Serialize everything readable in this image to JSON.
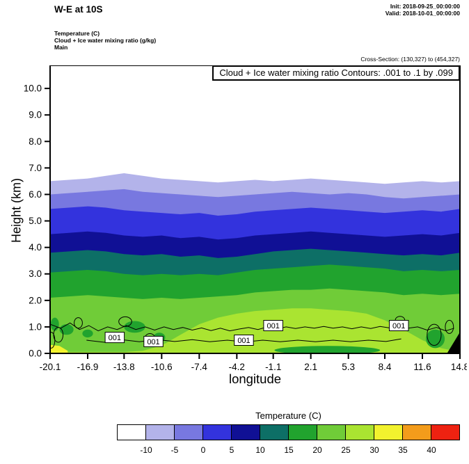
{
  "header": {
    "title": "W-E at 10S",
    "init": "Init: 2018-09-25_00:00:00",
    "valid": "Valid: 2018-10-01_00:00:00",
    "field_lines": [
      "Temperature (C)",
      "Cloud + Ice water mixing ratio (g/kg)",
      "Main"
    ],
    "cross_section": "Cross-Section: (130,327) to (454,327)"
  },
  "plot": {
    "annotation": "Cloud + Ice water mixing ratio Contours: .001 to .1 by .099",
    "xlabel": "longitude",
    "ylabel": "Height (km)"
  },
  "colorbar": {
    "title": "Temperature (C)",
    "colors": [
      "#ffffff",
      "#b3b3ea",
      "#7878e0",
      "#3333dd",
      "#101095",
      "#0d6f66",
      "#21a32e",
      "#70cc38",
      "#aae431",
      "#f2f22e",
      "#f39c1b",
      "#ee2211"
    ],
    "labels": [
      "-10",
      "-5",
      "0",
      "5",
      "10",
      "15",
      "20",
      "25",
      "30",
      "35",
      "40"
    ]
  },
  "chart_data": {
    "type": "area",
    "title": "Cloud + Ice water mixing ratio Contours: .001 to .1 by .099",
    "xlabel": "longitude",
    "ylabel": "Height (km)",
    "xlim": [
      -20.1,
      14.8
    ],
    "ylim": [
      0,
      10.87
    ],
    "x_ticks": [
      {
        "v": -20.1,
        "label": "-20.1"
      },
      {
        "v": -16.9,
        "label": "-16.9"
      },
      {
        "v": -13.8,
        "label": "-13.8"
      },
      {
        "v": -10.6,
        "label": "-10.6"
      },
      {
        "v": -7.4,
        "label": "-7.4"
      },
      {
        "v": -4.2,
        "label": "-4.2"
      },
      {
        "v": -1.1,
        "label": "-1.1"
      },
      {
        "v": 2.1,
        "label": "2.1"
      },
      {
        "v": 5.3,
        "label": "5.3"
      },
      {
        "v": 8.4,
        "label": "8.4"
      },
      {
        "v": 11.6,
        "label": "11.6"
      },
      {
        "v": 14.8,
        "label": "14.8"
      }
    ],
    "y_ticks": [
      {
        "v": 0,
        "label": "0.0"
      },
      {
        "v": 1,
        "label": "1.0"
      },
      {
        "v": 2,
        "label": "2.0"
      },
      {
        "v": 3,
        "label": "3.0"
      },
      {
        "v": 4,
        "label": "4.0"
      },
      {
        "v": 5,
        "label": "5.0"
      },
      {
        "v": 6,
        "label": "6.0"
      },
      {
        "v": 7,
        "label": "7.0"
      },
      {
        "v": 8,
        "label": "8.0"
      },
      {
        "v": 9,
        "label": "9.0"
      },
      {
        "v": 10,
        "label": "10.0"
      }
    ],
    "x": [
      -20.1,
      -18.5,
      -16.9,
      -15.35,
      -13.8,
      -12.2,
      -10.6,
      -9.0,
      -7.4,
      -5.8,
      -4.2,
      -2.65,
      -1.1,
      0.5,
      2.1,
      3.7,
      5.3,
      6.85,
      8.4,
      10.0,
      11.6,
      13.2,
      14.8
    ],
    "isotherm_series": [
      {
        "level": -10,
        "color": "#b3b3ea",
        "heights": [
          6.5,
          6.55,
          6.6,
          6.7,
          6.8,
          6.7,
          6.6,
          6.55,
          6.5,
          6.45,
          6.5,
          6.55,
          6.5,
          6.55,
          6.6,
          6.55,
          6.5,
          6.45,
          6.4,
          6.45,
          6.5,
          6.45,
          6.5
        ]
      },
      {
        "level": -5,
        "color": "#7878e0",
        "heights": [
          6.0,
          6.05,
          6.1,
          6.15,
          6.2,
          6.1,
          6.05,
          6.0,
          5.95,
          5.9,
          5.95,
          6.0,
          6.05,
          6.1,
          6.05,
          6.0,
          6.05,
          6.0,
          5.9,
          5.85,
          5.9,
          5.95,
          6.0
        ]
      },
      {
        "level": 0,
        "color": "#3333dd",
        "heights": [
          5.45,
          5.5,
          5.55,
          5.5,
          5.4,
          5.35,
          5.3,
          5.25,
          5.3,
          5.2,
          5.25,
          5.35,
          5.4,
          5.45,
          5.5,
          5.45,
          5.4,
          5.35,
          5.3,
          5.35,
          5.4,
          5.35,
          5.45
        ]
      },
      {
        "level": 5,
        "color": "#101095",
        "heights": [
          4.5,
          4.55,
          4.6,
          4.55,
          4.45,
          4.4,
          4.45,
          4.35,
          4.4,
          4.3,
          4.35,
          4.45,
          4.5,
          4.55,
          4.6,
          4.55,
          4.5,
          4.45,
          4.4,
          4.45,
          4.5,
          4.45,
          4.55
        ]
      },
      {
        "level": 10,
        "color": "#0d6f66",
        "heights": [
          3.8,
          3.85,
          3.9,
          3.85,
          3.75,
          3.7,
          3.75,
          3.65,
          3.7,
          3.6,
          3.65,
          3.75,
          3.85,
          3.9,
          3.95,
          3.9,
          3.85,
          3.8,
          3.75,
          3.7,
          3.75,
          3.7,
          3.8
        ]
      },
      {
        "level": 15,
        "color": "#21a32e",
        "heights": [
          3.05,
          3.1,
          3.15,
          3.1,
          3.0,
          2.95,
          3.0,
          2.95,
          3.0,
          2.95,
          3.05,
          3.15,
          3.2,
          3.25,
          3.3,
          3.35,
          3.3,
          3.25,
          3.2,
          3.1,
          3.15,
          3.1,
          3.15
        ]
      },
      {
        "level": 20,
        "color": "#70cc38",
        "heights": [
          2.1,
          2.15,
          2.2,
          2.15,
          2.1,
          2.05,
          2.1,
          2.05,
          2.1,
          2.15,
          2.2,
          2.3,
          2.35,
          2.4,
          2.4,
          2.45,
          2.4,
          2.35,
          2.3,
          2.2,
          2.25,
          2.2,
          2.25
        ]
      },
      {
        "level": 25,
        "color": "#aae431",
        "heights": [
          0.05,
          0.05,
          0.05,
          0.05,
          0.05,
          0.1,
          0.3,
          0.7,
          1.1,
          1.35,
          1.5,
          1.6,
          1.65,
          1.7,
          1.7,
          1.65,
          1.6,
          1.5,
          1.25,
          0.9,
          0.5,
          0.2,
          0.05
        ]
      }
    ],
    "pockets": [
      {
        "x": -19.7,
        "h": 1.1,
        "rx": 0.35,
        "ry": 0.25,
        "color": "#21a32e"
      },
      {
        "x": -18.7,
        "h": 0.9,
        "rx": 0.6,
        "ry": 0.2,
        "color": "#21a32e"
      },
      {
        "x": -16.9,
        "h": 0.75,
        "rx": 0.45,
        "ry": 0.15,
        "color": "#21a32e"
      },
      {
        "x": -12.9,
        "h": 1.0,
        "rx": 0.9,
        "ry": 0.22,
        "color": "#21a32e"
      },
      {
        "x": -10.8,
        "h": 0.6,
        "rx": 0.5,
        "ry": 0.18,
        "color": "#21a32e"
      },
      {
        "x": 3.5,
        "h": 0.12,
        "rx": 4.5,
        "ry": 0.16,
        "color": "#21a32e"
      },
      {
        "x": 12.7,
        "h": 0.55,
        "rx": 0.8,
        "ry": 0.35,
        "color": "#21a32e"
      }
    ],
    "cloud_contour_lines": [
      [
        [
          -20.1,
          1.1
        ],
        [
          -19.2,
          0.95
        ],
        [
          -18.4,
          1.15
        ],
        [
          -17.6,
          0.9
        ],
        [
          -16.8,
          1.05
        ],
        [
          -16,
          0.85
        ],
        [
          -15.2,
          1
        ],
        [
          -14.4,
          0.9
        ],
        [
          -13.6,
          1.05
        ],
        [
          -12.8,
          0.9
        ],
        [
          -12,
          1
        ],
        [
          -11.2,
          0.88
        ],
        [
          -10.4,
          1
        ],
        [
          -9.6,
          0.9
        ],
        [
          -8.8,
          0.98
        ],
        [
          -8,
          0.88
        ],
        [
          -7.2,
          0.96
        ],
        [
          -6.4,
          0.86
        ],
        [
          -5.6,
          0.95
        ],
        [
          -4.8,
          0.85
        ],
        [
          -4,
          0.92
        ],
        [
          -3.2,
          0.98
        ],
        [
          -2.4,
          0.9
        ],
        [
          -1.6,
          1
        ],
        [
          -0.8,
          0.92
        ],
        [
          0,
          1
        ],
        [
          0.8,
          0.94
        ],
        [
          1.6,
          1
        ],
        [
          2.4,
          0.95
        ],
        [
          3.2,
          1.02
        ],
        [
          4,
          0.95
        ],
        [
          4.8,
          1
        ],
        [
          5.6,
          0.93
        ],
        [
          6.4,
          1
        ],
        [
          7.2,
          0.94
        ],
        [
          8,
          1.02
        ],
        [
          8.8,
          0.96
        ],
        [
          9.6,
          1.05
        ],
        [
          10.4,
          0.95
        ],
        [
          11.2,
          1
        ],
        [
          12,
          0.88
        ],
        [
          12.8,
          0.98
        ],
        [
          13.6,
          0.85
        ],
        [
          14.3,
          0.95
        ]
      ],
      [
        [
          -17,
          0.5
        ],
        [
          -15.5,
          0.42
        ],
        [
          -14,
          0.52
        ],
        [
          -12.5,
          0.44
        ],
        [
          -11,
          0.52
        ],
        [
          -9.5,
          0.45
        ],
        [
          -8,
          0.52
        ],
        [
          -6.5,
          0.44
        ],
        [
          -5,
          0.5
        ],
        [
          -3.5,
          0.43
        ],
        [
          -2,
          0.5
        ],
        [
          -0.5,
          0.44
        ],
        [
          1,
          0.5
        ],
        [
          2.5,
          0.44
        ],
        [
          4,
          0.5
        ],
        [
          5.5,
          0.44
        ],
        [
          7,
          0.5
        ],
        [
          8.5,
          0.45
        ],
        [
          9.8,
          0.55
        ]
      ]
    ],
    "cloud_contour_loops": [
      {
        "x": -20.0,
        "h": 0.5,
        "rx": 0.3,
        "ry": 0.3
      },
      {
        "x": -19.4,
        "h": 0.7,
        "rx": 0.4,
        "ry": 0.28
      },
      {
        "x": -17.7,
        "h": 1.15,
        "rx": 0.35,
        "ry": 0.2
      },
      {
        "x": -13.7,
        "h": 1.2,
        "rx": 0.55,
        "ry": 0.18
      },
      {
        "x": -11.6,
        "h": 0.55,
        "rx": 0.45,
        "ry": 0.2
      },
      {
        "x": 9.7,
        "h": 1.25,
        "rx": 0.4,
        "ry": 0.15
      },
      {
        "x": 12.6,
        "h": 0.7,
        "rx": 0.6,
        "ry": 0.4
      },
      {
        "x": 13.9,
        "h": 1.0,
        "rx": 0.35,
        "ry": 0.25
      }
    ],
    "contour_labels": [
      {
        "text": "001",
        "x": -14.6,
        "h": 0.6
      },
      {
        "text": "001",
        "x": -11.3,
        "h": 0.45
      },
      {
        "text": "001",
        "x": -3.6,
        "h": 0.5
      },
      {
        "text": "001",
        "x": -1.1,
        "h": 1.05
      },
      {
        "text": "001",
        "x": 9.6,
        "h": 1.05
      }
    ],
    "surface_polygons": [
      {
        "name": "warm-surface-strip",
        "color": "#f2f22e",
        "points": [
          [
            -20.1,
            0.32
          ],
          [
            -19.3,
            0.28
          ],
          [
            -18.6,
            0.1
          ],
          [
            -18.6,
            0
          ],
          [
            -20.1,
            0
          ]
        ]
      },
      {
        "name": "terrain",
        "color": "#000000",
        "points": [
          [
            13.7,
            0
          ],
          [
            14.8,
            0
          ],
          [
            14.8,
            0.8
          ]
        ]
      }
    ]
  }
}
